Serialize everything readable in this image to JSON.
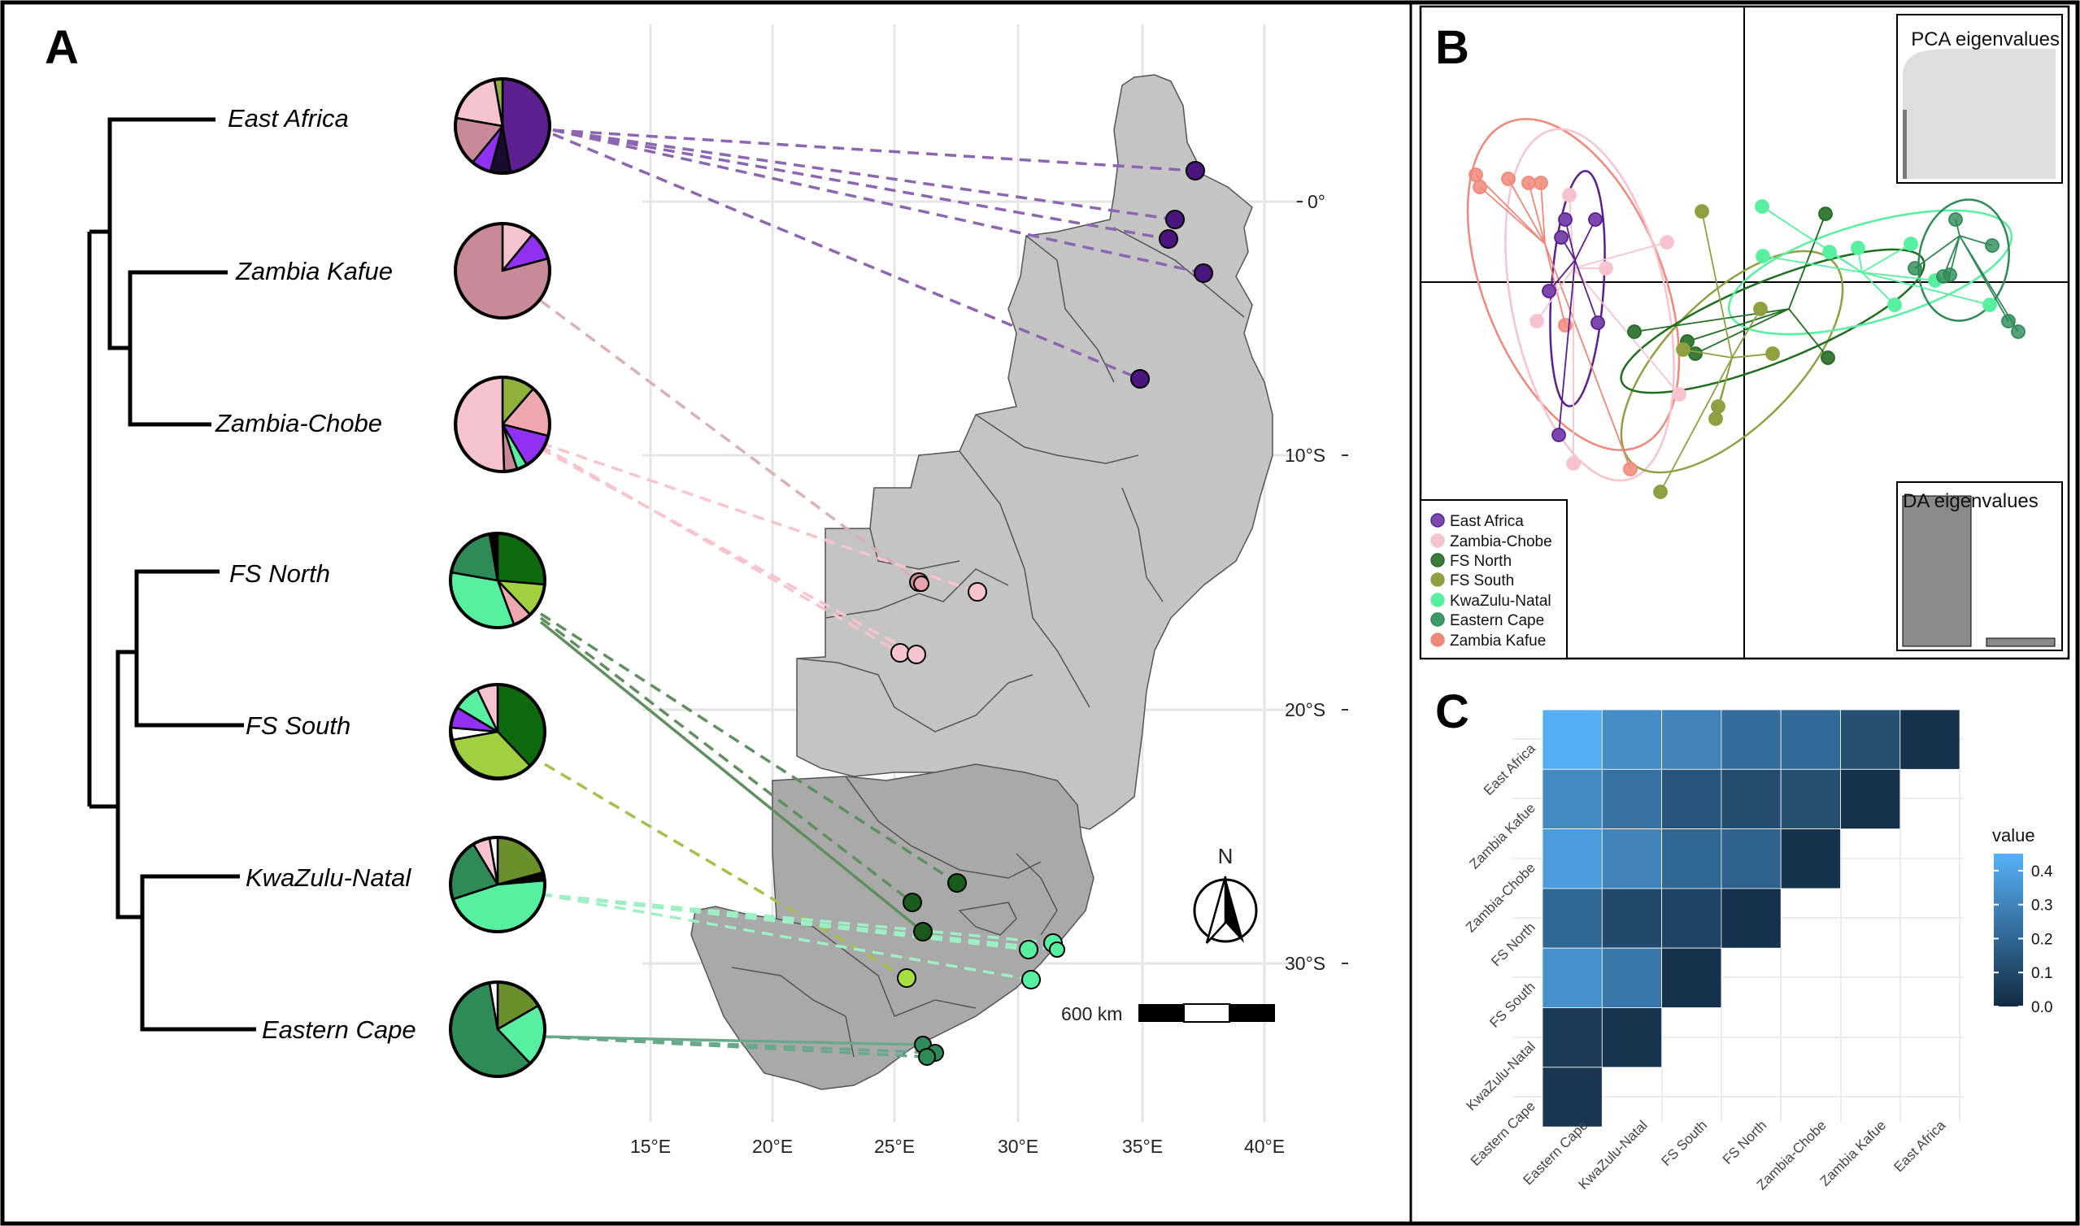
{
  "panels": {
    "a": "A",
    "b": "B",
    "c": "C"
  },
  "populations": [
    "East Africa",
    "Zambia Kafue",
    "Zambia-Chobe",
    "FS North",
    "FS South",
    "KwaZulu-Natal",
    "Eastern Cape"
  ],
  "colors": {
    "East Africa": "#5b1f8f",
    "Zambia Kafue": "#c98a97",
    "Zambia-Chobe": "#f7c3ce",
    "FS North": "#1f6e1f",
    "FS South": "#8fb03a",
    "KwaZulu-Natal": "#57f0a0",
    "Eastern Cape": "#2e8b57",
    "Zambia Kafue pts": "#f08c80"
  },
  "map": {
    "lon_ticks": [
      "15°E",
      "20°E",
      "25°E",
      "30°E",
      "35°E",
      "40°E"
    ],
    "lat_ticks": [
      "0°",
      "10°S",
      "20°S",
      "30°S"
    ],
    "scale_label": "600 km",
    "north_label": "N"
  },
  "pca": {
    "pca_eig_title": "PCA eigenvalues",
    "da_eig_title": "DA eigenvalues",
    "legend": [
      "East Africa",
      "Zambia-Chobe",
      "FS North",
      "FS South",
      "KwaZulu-Natal",
      "Eastern Cape",
      "Zambia Kafue"
    ],
    "da_eigenvalues": [
      1.0,
      0.06
    ]
  },
  "chart_data": {
    "type": "heatmap",
    "rows": [
      "East Africa",
      "Zambia Kafue",
      "Zambia-Chobe",
      "FS North",
      "FS South",
      "KwaZulu-Natal",
      "Eastern Cape"
    ],
    "cols": [
      "Eastern Cape",
      "KwaZulu-Natal",
      "FS South",
      "FS North",
      "Zambia-Chobe",
      "Zambia Kafue",
      "East Africa"
    ],
    "values": [
      [
        0.44,
        0.33,
        0.3,
        0.22,
        0.21,
        0.12,
        0.02
      ],
      [
        0.32,
        0.24,
        0.14,
        0.11,
        0.12,
        0.02
      ],
      [
        0.38,
        0.3,
        0.2,
        0.18,
        0.02
      ],
      [
        0.2,
        0.1,
        0.08,
        0.02
      ],
      [
        0.34,
        0.26,
        0.02
      ],
      [
        0.05,
        0.03
      ],
      [
        0.04
      ]
    ],
    "legend_title": "value",
    "legend_ticks": [
      "0.4",
      "0.3",
      "0.2",
      "0.1",
      "0.0"
    ],
    "legend_values": [
      0.4,
      0.3,
      0.2,
      0.1,
      0.0
    ],
    "value_range": [
      0,
      0.45
    ]
  }
}
